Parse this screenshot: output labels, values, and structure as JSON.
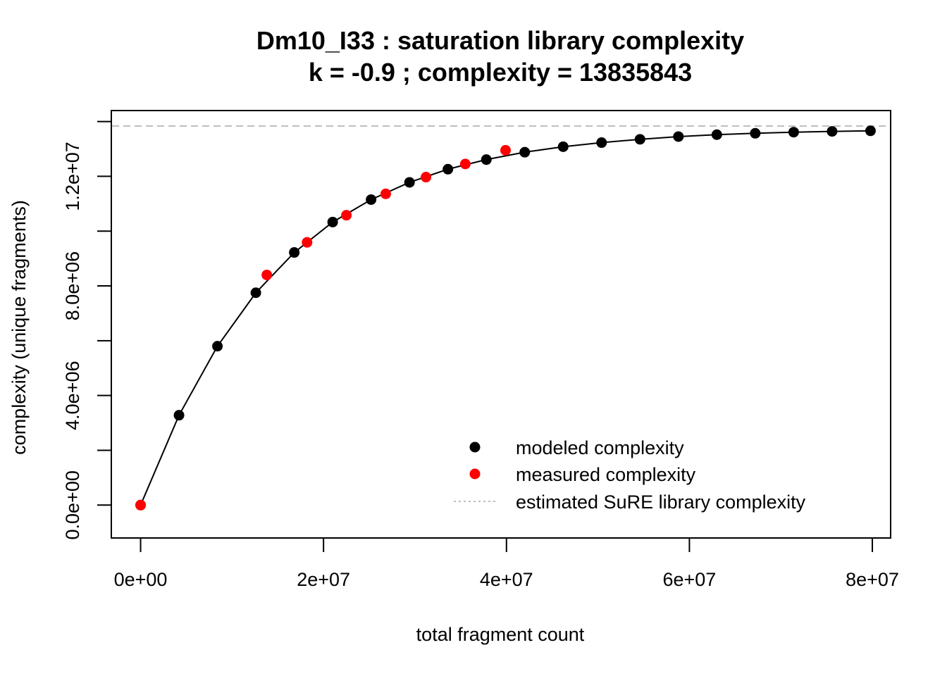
{
  "chart_data": {
    "type": "scatter",
    "title": "Dm10_I33 : saturation library complexity",
    "subtitle": "k = -0.9 ; complexity = 13835843",
    "xlabel": "total fragment count",
    "ylabel": "complexity (unique fragments)",
    "xlim": [
      -3200000,
      82000000
    ],
    "ylim": [
      -1200000,
      14400000
    ],
    "x_ticks": [
      0,
      20000000,
      40000000,
      60000000,
      80000000
    ],
    "x_tick_labels": [
      "0e+00",
      "2e+07",
      "4e+07",
      "6e+07",
      "8e+07"
    ],
    "y_ticks": [
      0,
      2000000,
      4000000,
      6000000,
      8000000,
      10000000,
      12000000,
      14000000
    ],
    "y_tick_labels": [
      "0.0e+00",
      "",
      "4.0e+06",
      "",
      "8.0e+06",
      "",
      "1.2e+07",
      ""
    ],
    "grid": false,
    "legend_position": "bottom-right",
    "reference_line": {
      "name": "estimated SuRE library complexity",
      "y": 13835843,
      "style": "dashed",
      "color": "#bebebe"
    },
    "series": [
      {
        "name": "modeled complexity",
        "color": "#000000",
        "connected": true,
        "x": [
          0,
          4200000,
          8400000,
          12600000,
          16800000,
          21000000,
          25200000,
          29400000,
          33600000,
          37800000,
          42000000,
          46200000,
          50400000,
          54600000,
          58800000,
          63000000,
          67200000,
          71400000,
          75600000,
          79800000
        ],
        "y": [
          0,
          3280000,
          5800000,
          7750000,
          9220000,
          10330000,
          11150000,
          11780000,
          12260000,
          12610000,
          12880000,
          13080000,
          13230000,
          13350000,
          13450000,
          13520000,
          13570000,
          13610000,
          13640000,
          13660000
        ]
      },
      {
        "name": "measured complexity",
        "color": "#ff0000",
        "connected": false,
        "x": [
          0,
          13800000,
          18200000,
          22500000,
          26800000,
          31200000,
          35500000,
          39900000
        ],
        "y": [
          0,
          8400000,
          9590000,
          10580000,
          11360000,
          11970000,
          12450000,
          12950000
        ]
      }
    ],
    "legend": [
      {
        "label": "modeled complexity",
        "marker": "dot",
        "color": "#000000"
      },
      {
        "label": "measured complexity",
        "marker": "dot",
        "color": "#ff0000"
      },
      {
        "label": "estimated SuRE library complexity",
        "marker": "dotted-line",
        "color": "#bebebe"
      }
    ]
  }
}
